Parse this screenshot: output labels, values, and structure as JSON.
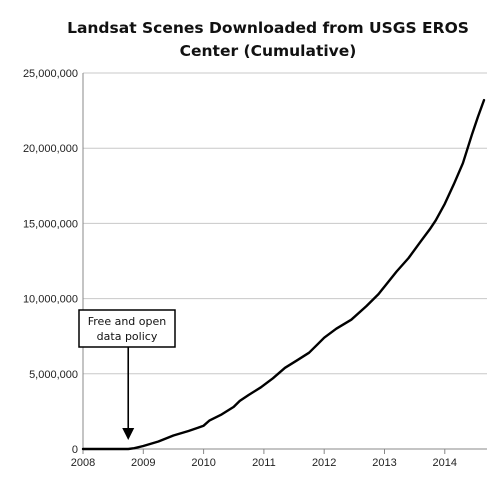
{
  "chart_data": {
    "type": "line",
    "title": "Landsat Scenes Downloaded from USGS EROS Center (Cumulative)",
    "title_lines": [
      "Landsat Scenes Downloaded from USGS EROS",
      "Center  (Cumulative)"
    ],
    "xlabel": "",
    "ylabel": "",
    "xlim": [
      2008,
      2014.7
    ],
    "ylim": [
      0,
      25000000
    ],
    "x_ticks": [
      2008,
      2009,
      2010,
      2011,
      2012,
      2013,
      2014
    ],
    "x_tick_labels": [
      "2008",
      "2009",
      "2010",
      "2011",
      "2012",
      "2013",
      "2014"
    ],
    "y_ticks": [
      0,
      5000000,
      10000000,
      15000000,
      20000000,
      25000000
    ],
    "y_tick_labels": [
      "0",
      "5,000,000",
      "10,000,000",
      "15,000,000",
      "20,000,000",
      "25,000,000"
    ],
    "grid": "horizontal",
    "legend": "none",
    "line_color": "#000000",
    "grid_color": "#c8c8c8",
    "series": [
      {
        "x": [
          2008.0,
          2008.5,
          2008.75,
          2008.85,
          2009.0,
          2009.25,
          2009.5,
          2009.75,
          2009.9,
          2010.0,
          2010.1,
          2010.3,
          2010.5,
          2010.6,
          2010.75,
          2010.95,
          2011.15,
          2011.35,
          2011.55,
          2011.75,
          2011.9,
          2012.0,
          2012.2,
          2012.45,
          2012.7,
          2012.9,
          2013.0,
          2013.2,
          2013.4,
          2013.6,
          2013.75,
          2013.85,
          2014.0,
          2014.15,
          2014.3,
          2014.45,
          2014.55,
          2014.65
        ],
        "y": [
          0,
          0,
          0,
          50000,
          200000,
          500000,
          900000,
          1200000,
          1400000,
          1550000,
          1900000,
          2300000,
          2800000,
          3200000,
          3600000,
          4100000,
          4700000,
          5400000,
          5900000,
          6400000,
          7000000,
          7400000,
          8000000,
          8600000,
          9500000,
          10300000,
          10800000,
          11800000,
          12700000,
          13800000,
          14600000,
          15200000,
          16300000,
          17600000,
          19000000,
          20900000,
          22100000,
          23200000
        ]
      }
    ],
    "annotations": [
      {
        "text_lines": [
          "Free and open",
          "data policy"
        ],
        "x": 2008.75,
        "y": 0
      }
    ]
  }
}
